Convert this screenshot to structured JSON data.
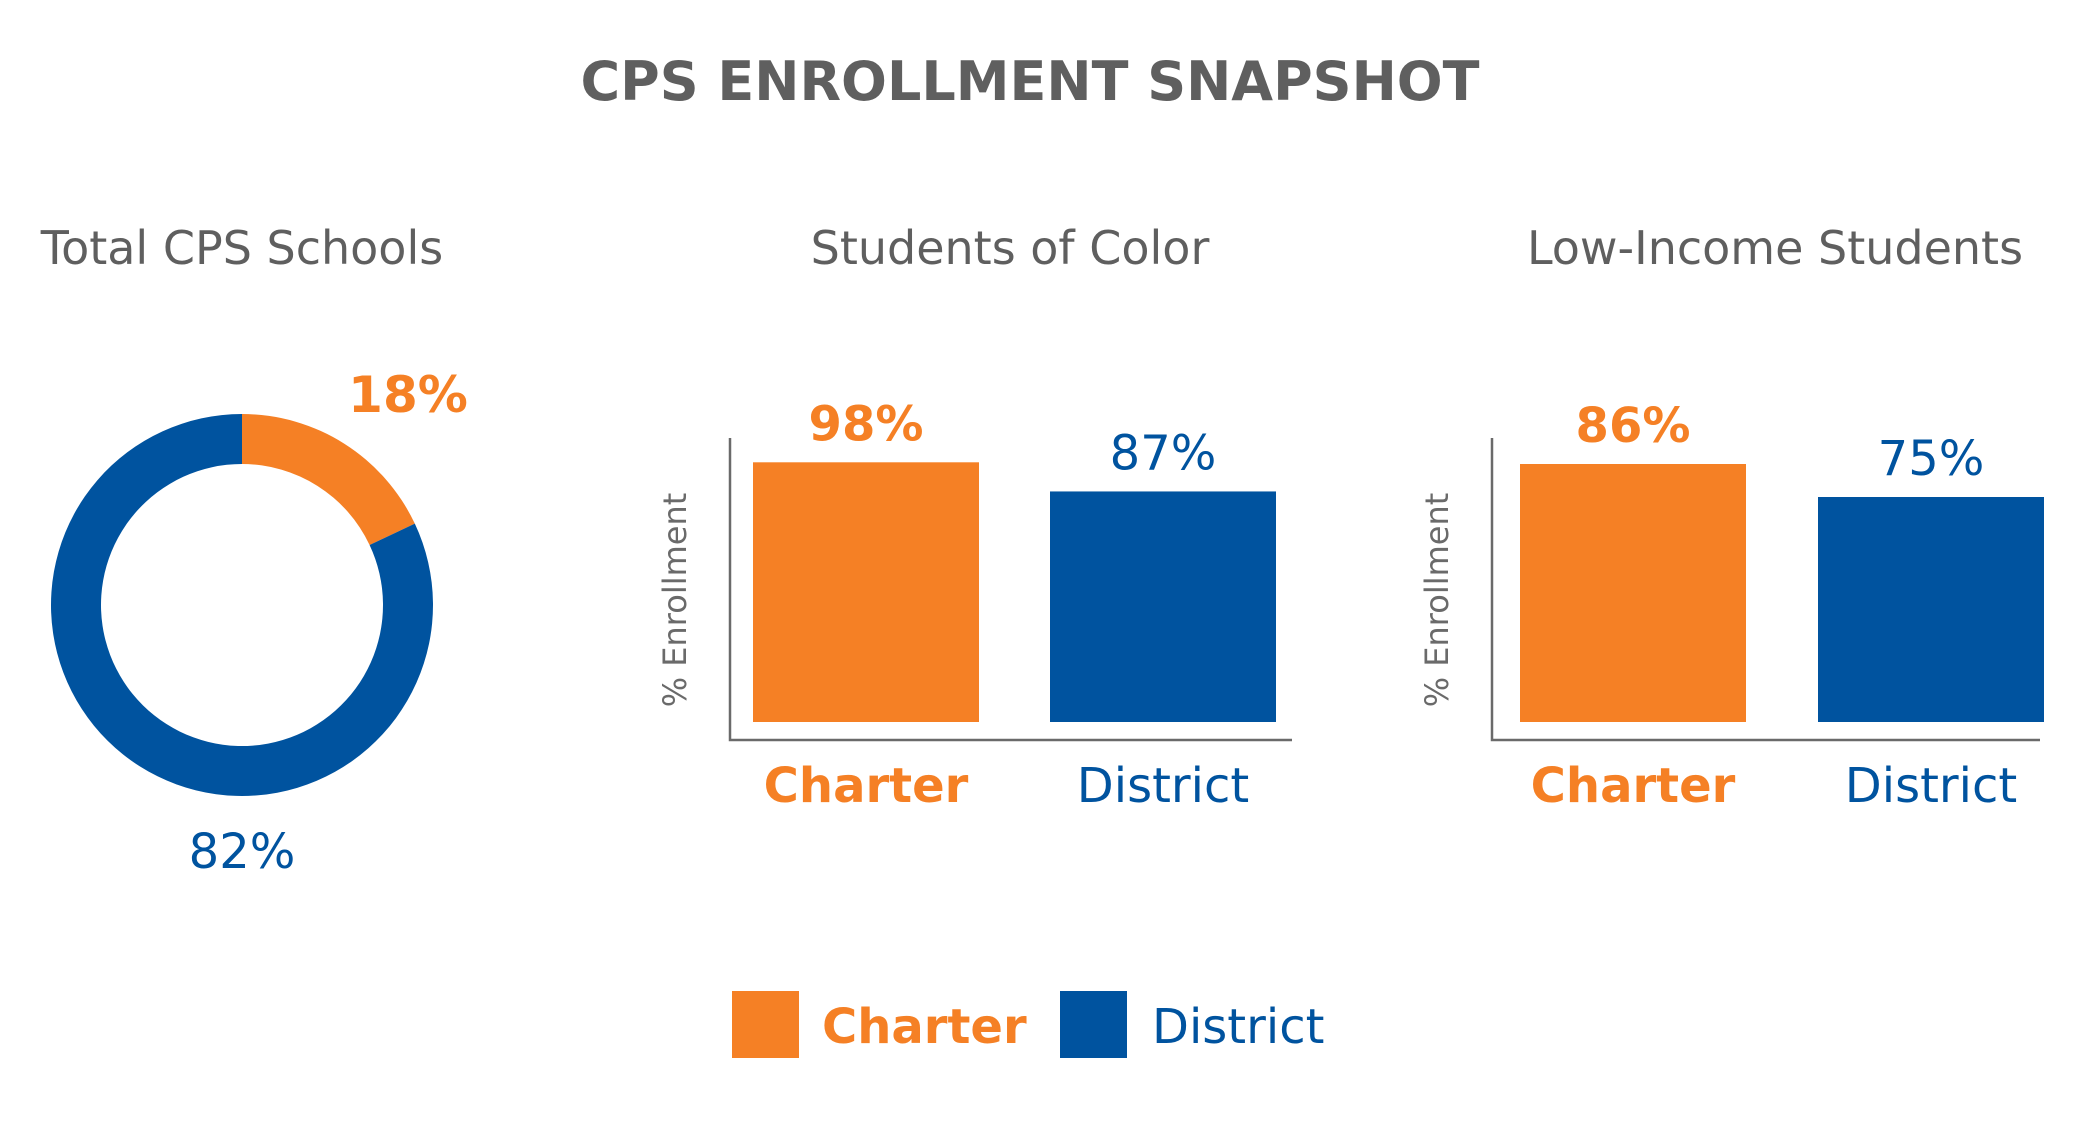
{
  "title": "CPS ENROLLMENT SNAPSHOT",
  "colors": {
    "charter": "#F58025",
    "district": "#00539F",
    "text": "#5F5F5F"
  },
  "legend": {
    "placement": "bottom-center",
    "items": [
      "Charter",
      "District"
    ]
  },
  "chart_data": [
    {
      "type": "pie",
      "title": "Total CPS Schools",
      "donut": true,
      "slices": [
        {
          "name": "Charter",
          "value": 18,
          "label": "18%"
        },
        {
          "name": "District",
          "value": 82,
          "label": "82%"
        }
      ]
    },
    {
      "type": "bar",
      "title": "Students of Color",
      "ylabel": "% Enrollment",
      "xlabel": "",
      "categories": [
        "Charter",
        "District"
      ],
      "values": [
        98,
        87
      ],
      "data_labels": [
        "98%",
        "87%"
      ],
      "ylim": [
        0,
        100
      ],
      "grid": false
    },
    {
      "type": "bar",
      "title": "Low-Income Students",
      "ylabel": "% Enrollment",
      "xlabel": "",
      "categories": [
        "Charter",
        "District"
      ],
      "values": [
        86,
        75
      ],
      "data_labels": [
        "86%",
        "75%"
      ],
      "ylim": [
        0,
        100
      ],
      "grid": false
    }
  ]
}
